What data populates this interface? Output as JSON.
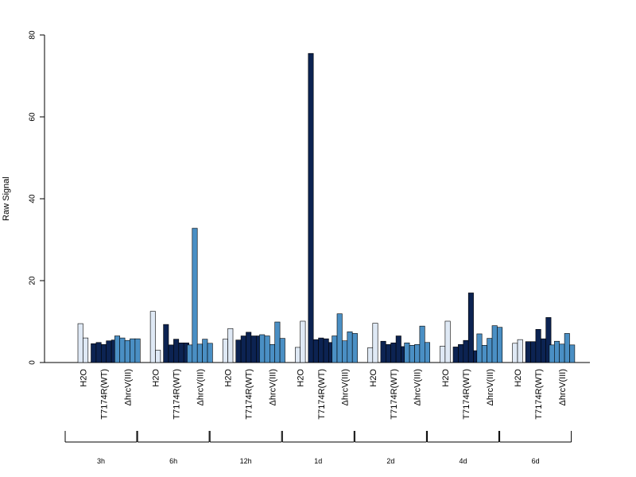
{
  "chart_data": {
    "type": "bar",
    "ylabel": "Raw Signal",
    "ylim": [
      0,
      80
    ],
    "yticks": [
      0,
      20,
      40,
      60,
      80
    ],
    "grid": false,
    "condition_labels": [
      "H2O",
      "T7174R(WT)",
      "ΔhrcV(III)"
    ],
    "colors": {
      "H2O": "#dfe9f5",
      "T7174R(WT)": "#0c2352",
      "ΔhrcV(III)": "#4a8fc4"
    },
    "groups": [
      {
        "label": "3h",
        "series": [
          {
            "name": "H2O",
            "values": [
              9.5,
              6.0
            ]
          },
          {
            "name": "T7174R(WT)",
            "values": [
              4.6,
              4.9,
              4.4,
              5.3,
              5.5
            ]
          },
          {
            "name": "ΔhrcV(III)",
            "values": [
              6.5,
              6.0,
              5.4,
              5.8,
              5.8
            ]
          }
        ]
      },
      {
        "label": "6h",
        "series": [
          {
            "name": "H2O",
            "values": [
              12.5,
              3.0
            ]
          },
          {
            "name": "T7174R(WT)",
            "values": [
              9.3,
              4.3,
              5.7,
              4.8,
              4.8
            ]
          },
          {
            "name": "ΔhrcV(III)",
            "values": [
              4.3,
              32.8,
              4.5,
              5.7,
              4.7
            ]
          }
        ]
      },
      {
        "label": "12h",
        "series": [
          {
            "name": "H2O",
            "values": [
              5.7,
              8.3
            ]
          },
          {
            "name": "T7174R(WT)",
            "values": [
              5.5,
              6.5,
              7.4,
              6.5,
              6.5
            ]
          },
          {
            "name": "ΔhrcV(III)",
            "values": [
              6.8,
              6.5,
              4.4,
              9.9,
              5.9
            ]
          }
        ]
      },
      {
        "label": "1d",
        "series": [
          {
            "name": "H2O",
            "values": [
              3.7,
              10.1
            ]
          },
          {
            "name": "T7174R(WT)",
            "values": [
              75.5,
              5.6,
              6.0,
              5.8,
              4.9
            ]
          },
          {
            "name": "ΔhrcV(III)",
            "values": [
              6.5,
              11.9,
              5.3,
              7.5,
              7.1
            ]
          }
        ]
      },
      {
        "label": "2d",
        "series": [
          {
            "name": "H2O",
            "values": [
              3.6,
              9.6
            ]
          },
          {
            "name": "T7174R(WT)",
            "values": [
              5.2,
              4.4,
              4.8,
              6.5,
              3.9
            ]
          },
          {
            "name": "ΔhrcV(III)",
            "values": [
              4.8,
              4.2,
              4.4,
              8.9,
              4.9
            ]
          }
        ]
      },
      {
        "label": "4d",
        "series": [
          {
            "name": "H2O",
            "values": [
              4.0,
              10.1
            ]
          },
          {
            "name": "T7174R(WT)",
            "values": [
              3.8,
              4.4,
              5.4,
              17.0,
              2.9
            ]
          },
          {
            "name": "ΔhrcV(III)",
            "values": [
              7.0,
              4.2,
              5.9,
              9.0,
              8.6
            ]
          }
        ]
      },
      {
        "label": "6d",
        "series": [
          {
            "name": "H2O",
            "values": [
              4.7,
              5.6
            ]
          },
          {
            "name": "T7174R(WT)",
            "values": [
              5.1,
              5.1,
              8.1,
              5.8,
              11.0
            ]
          },
          {
            "name": "ΔhrcV(III)",
            "values": [
              4.3,
              5.2,
              4.5,
              7.1,
              4.3
            ]
          }
        ]
      }
    ]
  }
}
